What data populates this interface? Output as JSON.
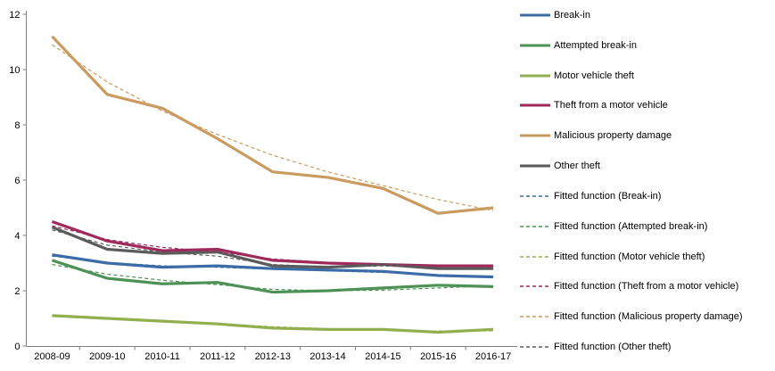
{
  "page": {
    "background": "#ffffff"
  },
  "chart_data": {
    "type": "line",
    "title": "",
    "xlabel": "",
    "ylabel": "",
    "ylim": [
      0,
      12
    ],
    "yticks": [
      0,
      2,
      4,
      6,
      8,
      10,
      12
    ],
    "grid": false,
    "legend_position": "right",
    "axis_color": "#808080",
    "text_color": "#000000",
    "categories": [
      "2008-09",
      "2009-10",
      "2010-11",
      "2011-12",
      "2012-13",
      "2013-14",
      "2014-15",
      "2015-16",
      "2016-17"
    ],
    "series": [
      {
        "name": "Break-in",
        "color": "#3B6CA8",
        "style": "solid",
        "values": [
          3.3,
          3.0,
          2.85,
          2.9,
          2.8,
          2.75,
          2.7,
          2.55,
          2.5
        ]
      },
      {
        "name": "Attempted break-in",
        "color": "#4E9156",
        "style": "solid",
        "values": [
          3.1,
          2.45,
          2.25,
          2.3,
          1.95,
          2.0,
          2.1,
          2.2,
          2.15
        ]
      },
      {
        "name": "Motor vehicle theft",
        "color": "#92AF4F",
        "style": "solid",
        "values": [
          1.1,
          1.0,
          0.9,
          0.8,
          0.65,
          0.6,
          0.6,
          0.5,
          0.6
        ]
      },
      {
        "name": "Theft from a motor vehicle",
        "color": "#9E2A5C",
        "style": "solid",
        "values": [
          4.5,
          3.8,
          3.45,
          3.5,
          3.1,
          3.0,
          2.95,
          2.9,
          2.9
        ]
      },
      {
        "name": "Malicious property damage",
        "color": "#CB9A60",
        "style": "solid",
        "values": [
          11.2,
          9.1,
          8.6,
          7.5,
          6.3,
          6.1,
          5.7,
          4.8,
          5.0
        ]
      },
      {
        "name": "Other theft",
        "color": "#5B5B5B",
        "style": "solid",
        "values": [
          4.3,
          3.5,
          3.35,
          3.4,
          2.9,
          2.85,
          2.95,
          2.8,
          2.8
        ]
      },
      {
        "name": "Fitted function (Break-in)",
        "color": "#3B6CA8",
        "style": "dashed",
        "values": [
          3.25,
          3.02,
          2.9,
          2.85,
          2.78,
          2.72,
          2.66,
          2.58,
          2.52
        ]
      },
      {
        "name": "Fitted function (Attempted break-in)",
        "color": "#4E9156",
        "style": "dashed",
        "values": [
          2.95,
          2.6,
          2.38,
          2.22,
          2.05,
          2.0,
          2.02,
          2.1,
          2.18
        ]
      },
      {
        "name": "Fitted function (Motor vehicle theft)",
        "color": "#92AF4F",
        "style": "dashed",
        "values": [
          1.1,
          1.0,
          0.9,
          0.8,
          0.7,
          0.63,
          0.58,
          0.54,
          0.55
        ]
      },
      {
        "name": "Fitted function (Theft from a motor vehicle)",
        "color": "#9E2A5C",
        "style": "dashed",
        "values": [
          4.35,
          3.85,
          3.57,
          3.4,
          3.15,
          3.02,
          2.95,
          2.9,
          2.86
        ]
      },
      {
        "name": "Fitted function (Malicious property damage)",
        "color": "#CB9A60",
        "style": "dashed",
        "values": [
          10.9,
          9.55,
          8.5,
          7.65,
          6.9,
          6.3,
          5.8,
          5.3,
          4.9
        ]
      },
      {
        "name": "Fitted function (Other theft)",
        "color": "#5B5B5B",
        "style": "dashed",
        "values": [
          4.2,
          3.65,
          3.4,
          3.25,
          2.95,
          2.85,
          2.9,
          2.82,
          2.8
        ]
      }
    ]
  }
}
